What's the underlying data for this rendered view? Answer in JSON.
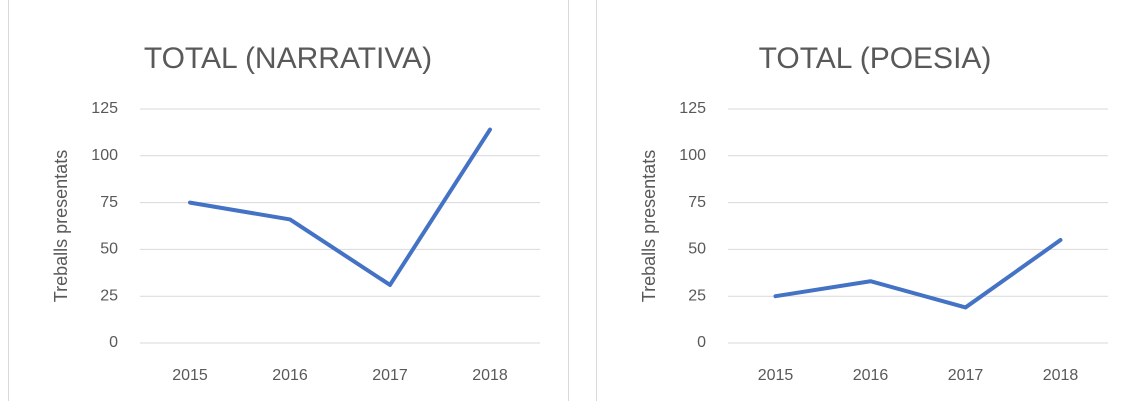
{
  "chart_data": [
    {
      "type": "line",
      "title": "TOTAL (NARRATIVA)",
      "y_label": "Treballs presentats",
      "categories": [
        "2015",
        "2016",
        "2017",
        "2018"
      ],
      "values": [
        75,
        66,
        31,
        114
      ],
      "color": "#4472c4",
      "ylim": [
        0,
        125
      ],
      "yticks": [
        0,
        25,
        50,
        75,
        100,
        125
      ],
      "grid": true
    },
    {
      "type": "line",
      "title": "TOTAL (POESIA)",
      "y_label": "Treballs presentats",
      "categories": [
        "2015",
        "2016",
        "2017",
        "2018"
      ],
      "values": [
        25,
        33,
        19,
        55
      ],
      "color": "#4472c4",
      "ylim": [
        0,
        125
      ],
      "yticks": [
        0,
        25,
        50,
        75,
        100,
        125
      ],
      "grid": true
    }
  ]
}
